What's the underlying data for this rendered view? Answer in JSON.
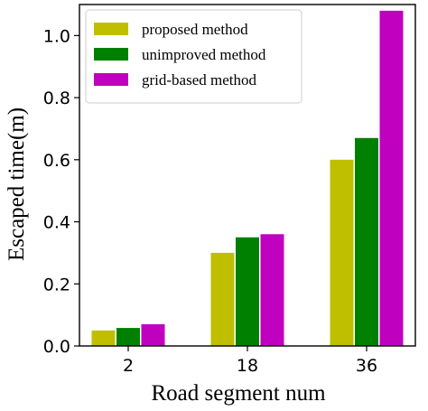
{
  "chart_data": {
    "type": "bar",
    "title": "",
    "xlabel": "Road segment num",
    "ylabel": "Escaped time(m)",
    "categories": [
      "2",
      "18",
      "36"
    ],
    "series": [
      {
        "name": "proposed method",
        "color": "#bfbf00",
        "values": [
          0.05,
          0.3,
          0.6
        ]
      },
      {
        "name": "unimproved method",
        "color": "#008000",
        "values": [
          0.058,
          0.35,
          0.67
        ]
      },
      {
        "name": "grid-based method",
        "color": "#bf00bf",
        "values": [
          0.07,
          0.36,
          1.08
        ]
      }
    ],
    "ylim": [
      0,
      1.1
    ],
    "yticks": [
      "0.0",
      "0.2",
      "0.4",
      "0.6",
      "0.8",
      "1.0"
    ],
    "grid": false,
    "legend_position": "top-left"
  }
}
